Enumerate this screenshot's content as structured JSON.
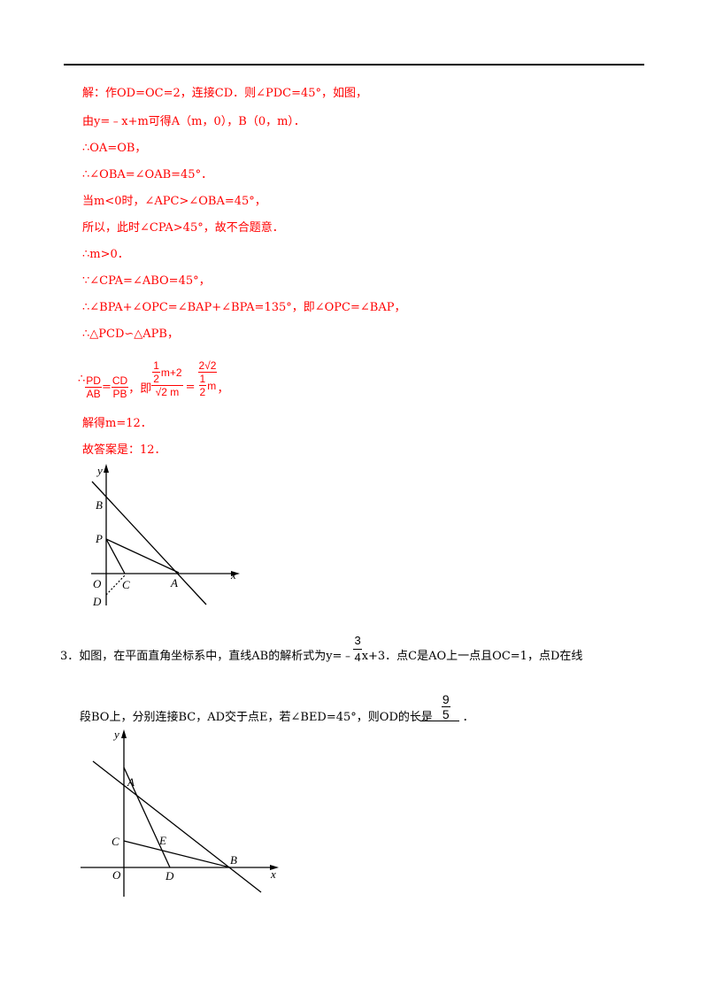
{
  "solution": {
    "l1": "解：作OD=OC=2，连接CD．则∠PDC=45°，如图，",
    "l2": "由y=﹣x+m可得A（m，0），B（0，m）．",
    "l3": "∴OA=OB，",
    "l4": "∴∠OBA=∠OAB=45°．",
    "l5": "当m<0时，∠APC>∠OBA=45°，",
    "l6": "所以，此时∠CPA>45°，故不合题意．",
    "l7": "∴m>0．",
    "l8": "∵∠CPA=∠ABO=45°，",
    "l9": "∴∠BPA+∠OPC=∠BAP+∠BPA=135°，即∠OPC=∠BAP，",
    "l10": "∴△PCD∽△APB，",
    "ratio": {
      "prefix": "∴",
      "f1_num": "PD",
      "f1_den": "AB",
      "eq": "=",
      "f2_num": "CD",
      "f2_den": "PB",
      "ji": "，即",
      "f3_num_a": "1",
      "f3_num_b": "2",
      "f3_num_c": "m+2",
      "f3_den": "√2 m",
      "eq2": "=",
      "f4_num": "2√2",
      "f4_den_a": "1",
      "f4_den_b": "2",
      "f4_den_c": "m",
      "tail": "，"
    },
    "l12": "解得m=12．",
    "l13": "故答案是：12．"
  },
  "figure1": {
    "labels": {
      "y": "y",
      "x": "x",
      "B": "B",
      "P": "P",
      "O": "O",
      "C": "C",
      "A": "A",
      "D": "D"
    }
  },
  "problem3": {
    "line1": "3．如图，在平面直角坐标系中，直线AB的解析式为y=﹣",
    "frac_num": "3",
    "frac_den": "4",
    "line1_tail": "x+3．点C是AO上一点且OC=1，点D在线",
    "line2": "段BO上，分别连接BC，AD交于点E，若∠BED=45°，则OD的长是",
    "answer_num": "9",
    "answer_den": "5",
    "line2_tail": "．"
  },
  "figure2": {
    "labels": {
      "y": "y",
      "x": "x",
      "A": "A",
      "C": "C",
      "E": "E",
      "B": "B",
      "O": "O",
      "D": "D"
    }
  }
}
